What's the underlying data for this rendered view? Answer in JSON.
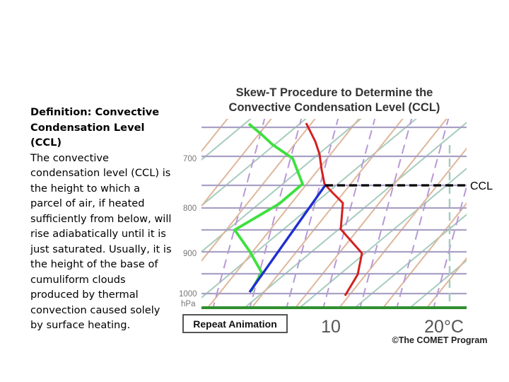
{
  "definition": {
    "title": "Definition: Convective Condensation Level (CCL)",
    "body": "The convective condensation level (CCL) is the height to which a parcel of air, if heated sufficiently from below, will rise adiabatically until it is just saturated. Usually, it is the height of the base of cumuliform clouds produced by thermal convection caused solely by surface heating."
  },
  "diagram": {
    "title_line1": "Skew-T Procedure to Determine the",
    "title_line2": "Convective Condensation Level (CCL)",
    "pressure_labels": [
      "700",
      "800",
      "900",
      "1000"
    ],
    "pressure_unit": "hPa",
    "ccl_label": "CCL",
    "temp_labels": [
      "10",
      "20°C"
    ],
    "button_label": "Repeat Animation",
    "credit": "©The COMET Program",
    "colors": {
      "temperature": "#d42020",
      "dewpoint": "#3ee03e",
      "parcel": "#1f2fd0",
      "isobar": "#a9a1c4",
      "isotherm": "#a6ccbd",
      "dry_adiabat": "#dfb79b",
      "mixing_ratio": "#b898d6",
      "surface": "#2f8f2f"
    }
  }
}
